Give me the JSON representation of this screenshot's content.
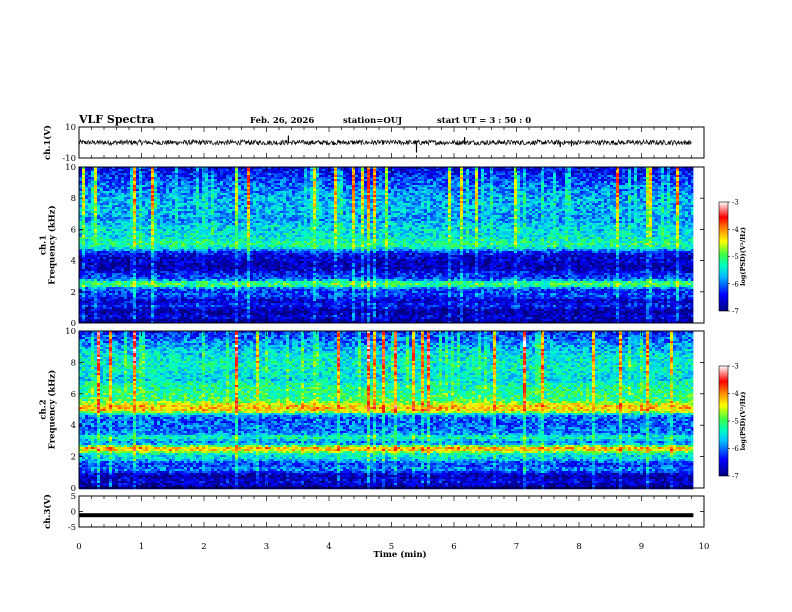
{
  "header": {
    "title": "VLF Spectra",
    "date": "Feb. 26, 2026",
    "station": "station=OUJ",
    "start": "start UT =  3 : 50 : 0"
  },
  "chart_data": [
    {
      "type": "line",
      "name": "ch1-waveform",
      "ylabel": "ch.1(V)",
      "ylim": [
        -10,
        10
      ],
      "yticks": [
        10,
        -10
      ],
      "xlim": [
        0,
        10
      ],
      "baseline": 0,
      "noise_amplitude": 1.6,
      "spikes": [
        {
          "x": 3.35,
          "y": 4.5
        },
        {
          "x": 5.4,
          "y": -6.5
        },
        {
          "x": 6.17,
          "y": 3.5
        },
        {
          "x": 7.7,
          "y": -3.0
        },
        {
          "x": 7.88,
          "y": -2.5
        }
      ]
    },
    {
      "type": "heatmap",
      "name": "ch1-spectrogram",
      "ylabel": "ch.1\nFrequency (kHz)",
      "ylim": [
        0,
        10
      ],
      "yticks": [
        0,
        2,
        4,
        6,
        8,
        10
      ],
      "xlim": [
        0,
        10
      ],
      "data_end_min": 9.83,
      "colorbar": {
        "label": "log(PSD)(V²/Hz)",
        "range": [
          -7,
          -3
        ],
        "ticks": [
          -3,
          -4,
          -5,
          -6,
          -7
        ]
      },
      "bands": [
        {
          "f": 0.4,
          "v": 0.1,
          "w": 0.25
        },
        {
          "f": 1.1,
          "v": 0.15,
          "w": 0.25
        },
        {
          "f": 1.8,
          "v": 0.2,
          "w": 0.35
        },
        {
          "f": 2.5,
          "v": 0.5,
          "w": 0.3
        },
        {
          "f": 3.1,
          "v": 0.15,
          "w": 0.3
        },
        {
          "f": 4.2,
          "v": 0.05,
          "w": 0.6
        },
        {
          "f": 5.0,
          "v": 0.55,
          "w": 0.35
        },
        {
          "f": 5.7,
          "v": 0.4,
          "w": 0.5
        },
        {
          "f": 7.5,
          "v": 0.32,
          "w": 2.5
        }
      ]
    },
    {
      "type": "heatmap",
      "name": "ch2-spectrogram",
      "ylabel": "ch.2\nFrequency (kHz)",
      "ylim": [
        0,
        10
      ],
      "yticks": [
        0,
        2,
        4,
        6,
        8,
        10
      ],
      "xlim": [
        0,
        10
      ],
      "data_end_min": 9.83,
      "colorbar": {
        "label": "log(PSD)(V²/Hz)",
        "range": [
          -7,
          -3
        ],
        "ticks": [
          -3,
          -4,
          -5,
          -6,
          -7
        ]
      },
      "bands": [
        {
          "f": 0.4,
          "v": 0.1,
          "w": 0.3
        },
        {
          "f": 1.2,
          "v": 0.25,
          "w": 0.3
        },
        {
          "f": 1.9,
          "v": 0.35,
          "w": 0.35
        },
        {
          "f": 2.5,
          "v": 0.7,
          "w": 0.3
        },
        {
          "f": 3.2,
          "v": 0.4,
          "w": 0.3
        },
        {
          "f": 3.8,
          "v": 0.25,
          "w": 0.3
        },
        {
          "f": 4.3,
          "v": 0.2,
          "w": 0.4
        },
        {
          "f": 5.1,
          "v": 0.78,
          "w": 0.35
        },
        {
          "f": 6.0,
          "v": 0.5,
          "w": 0.5
        },
        {
          "f": 7.8,
          "v": 0.4,
          "w": 2.4
        }
      ]
    },
    {
      "type": "line",
      "name": "ch3-waveform",
      "ylabel": "ch.3(V)",
      "ylim": [
        -5,
        5
      ],
      "yticks": [
        5,
        0,
        -5
      ],
      "xlim": [
        0,
        10
      ],
      "baseline": -1.0,
      "thickness": 0.9
    }
  ],
  "xaxis": {
    "label": "Time (min)",
    "ticks": [
      0,
      1,
      2,
      3,
      4,
      5,
      6,
      7,
      8,
      9,
      10
    ]
  },
  "colors": {
    "colormap": [
      "#000080",
      "#0000ff",
      "#00c0ff",
      "#00ffc0",
      "#40ff40",
      "#ffff00",
      "#ff8000",
      "#ff0000",
      "#ffffff"
    ]
  }
}
